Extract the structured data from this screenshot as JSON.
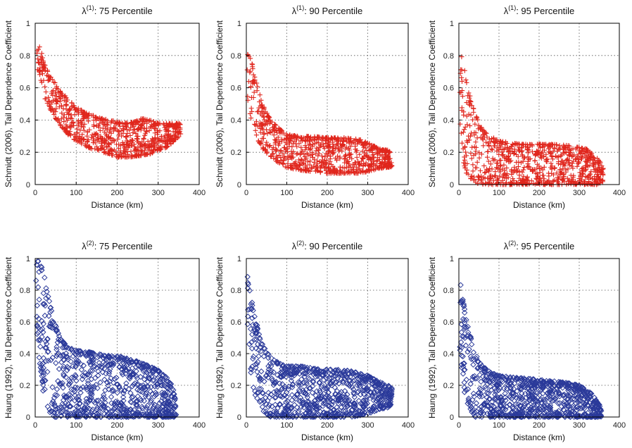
{
  "figure": {
    "row_ylabels": [
      "Schmidt (2006), Tail Dependence Coefficient",
      "Haung (1992), Tail Dependence Coefficient"
    ]
  },
  "chart_data": [
    {
      "type": "scatter",
      "title": "λ(1): 75 Percentile",
      "title_symbol": "λ",
      "title_superscript": "(1)",
      "title_rest": ": 75 Percentile",
      "xlabel": "Distance (km)",
      "ylabel": "Schmidt (2006), Tail Dependence Coefficient",
      "xlim": [
        0,
        400
      ],
      "ylim": [
        0,
        1
      ],
      "xticks": [
        0,
        100,
        200,
        300,
        400
      ],
      "yticks": [
        0,
        0.2,
        0.4,
        0.6,
        0.8,
        1
      ],
      "grid": true,
      "marker": "plus",
      "color": "#e0261d",
      "envelope": [
        [
          3,
          0.93,
          0.72
        ],
        [
          10,
          0.93,
          0.7
        ],
        [
          20,
          0.76,
          0.55
        ],
        [
          40,
          0.66,
          0.45
        ],
        [
          60,
          0.59,
          0.37
        ],
        [
          80,
          0.53,
          0.31
        ],
        [
          100,
          0.48,
          0.27
        ],
        [
          120,
          0.45,
          0.24
        ],
        [
          150,
          0.42,
          0.21
        ],
        [
          180,
          0.4,
          0.19
        ],
        [
          200,
          0.39,
          0.17
        ],
        [
          230,
          0.38,
          0.17
        ],
        [
          260,
          0.41,
          0.18
        ],
        [
          280,
          0.4,
          0.19
        ],
        [
          300,
          0.38,
          0.21
        ],
        [
          320,
          0.38,
          0.23
        ],
        [
          340,
          0.38,
          0.27
        ],
        [
          355,
          0.38,
          0.31
        ]
      ]
    },
    {
      "type": "scatter",
      "title": "λ(1): 90 Percentile",
      "title_symbol": "λ",
      "title_superscript": "(1)",
      "title_rest": ": 90 Percentile",
      "xlabel": "Distance (km)",
      "ylabel": "Schmidt (2006), Tail Dependence Coefficient",
      "xlim": [
        0,
        400
      ],
      "ylim": [
        0,
        1
      ],
      "xticks": [
        0,
        100,
        200,
        300,
        400
      ],
      "yticks": [
        0,
        0.2,
        0.4,
        0.6,
        0.8,
        1
      ],
      "grid": true,
      "marker": "plus",
      "color": "#e0261d",
      "envelope": [
        [
          2,
          0.92,
          0.55
        ],
        [
          10,
          0.82,
          0.42
        ],
        [
          20,
          0.68,
          0.32
        ],
        [
          40,
          0.5,
          0.22
        ],
        [
          60,
          0.4,
          0.17
        ],
        [
          80,
          0.35,
          0.13
        ],
        [
          100,
          0.31,
          0.1
        ],
        [
          130,
          0.3,
          0.09
        ],
        [
          160,
          0.3,
          0.08
        ],
        [
          200,
          0.29,
          0.07
        ],
        [
          240,
          0.29,
          0.07
        ],
        [
          280,
          0.28,
          0.07
        ],
        [
          300,
          0.26,
          0.08
        ],
        [
          330,
          0.22,
          0.1
        ],
        [
          360,
          0.21,
          0.11
        ]
      ]
    },
    {
      "type": "scatter",
      "title": "λ(1): 95 Percentile",
      "title_symbol": "λ",
      "title_superscript": "(1)",
      "title_rest": ": 95 Percentile",
      "xlabel": "Distance (km)",
      "ylabel": "Schmidt (2006), Tail Dependence Coefficient",
      "xlim": [
        0,
        400
      ],
      "ylim": [
        0,
        1
      ],
      "xticks": [
        0,
        100,
        200,
        300,
        400
      ],
      "yticks": [
        0,
        0.2,
        0.4,
        0.6,
        0.8,
        1
      ],
      "grid": true,
      "marker": "plus",
      "color": "#e0261d",
      "envelope": [
        [
          2,
          0.87,
          0.3
        ],
        [
          10,
          0.78,
          0.15
        ],
        [
          20,
          0.62,
          0.06
        ],
        [
          40,
          0.44,
          0.01
        ],
        [
          60,
          0.34,
          0.0
        ],
        [
          80,
          0.3,
          0.0
        ],
        [
          100,
          0.27,
          0.0
        ],
        [
          130,
          0.26,
          0.0
        ],
        [
          160,
          0.25,
          0.0
        ],
        [
          200,
          0.25,
          0.0
        ],
        [
          240,
          0.25,
          0.0
        ],
        [
          280,
          0.24,
          0.0
        ],
        [
          320,
          0.22,
          0.0
        ],
        [
          350,
          0.15,
          0.0
        ],
        [
          360,
          0.1,
          0.02
        ]
      ]
    },
    {
      "type": "scatter",
      "title": "λ(2): 75 Percentile",
      "title_symbol": "λ",
      "title_superscript": "(2)",
      "title_rest": ": 75 Percentile",
      "xlabel": "Distance (km)",
      "ylabel": "Haung (1992), Tail Dependence Coefficient",
      "xlim": [
        0,
        400
      ],
      "ylim": [
        0,
        1
      ],
      "xticks": [
        0,
        100,
        200,
        300,
        400
      ],
      "yticks": [
        0,
        0.2,
        0.4,
        0.6,
        0.8,
        1
      ],
      "grid": true,
      "marker": "diamond",
      "color": "#2b3a9a",
      "envelope": [
        [
          2,
          1.0,
          0.6
        ],
        [
          10,
          0.98,
          0.35
        ],
        [
          20,
          0.92,
          0.15
        ],
        [
          30,
          0.78,
          0.05
        ],
        [
          45,
          0.62,
          0.0
        ],
        [
          60,
          0.5,
          0.0
        ],
        [
          80,
          0.44,
          0.0
        ],
        [
          100,
          0.42,
          0.0
        ],
        [
          130,
          0.41,
          0.0
        ],
        [
          170,
          0.39,
          0.0
        ],
        [
          210,
          0.38,
          0.0
        ],
        [
          250,
          0.35,
          0.0
        ],
        [
          280,
          0.32,
          0.0
        ],
        [
          310,
          0.28,
          0.0
        ],
        [
          330,
          0.22,
          0.0
        ],
        [
          340,
          0.15,
          0.0
        ],
        [
          345,
          0.1,
          0.02
        ]
      ]
    },
    {
      "type": "scatter",
      "title": "λ(2): 90 Percentile",
      "title_symbol": "λ",
      "title_superscript": "(2)",
      "title_rest": ": 90 Percentile",
      "xlabel": "Distance (km)",
      "ylabel": "Haung (1992), Tail Dependence Coefficient",
      "xlim": [
        0,
        400
      ],
      "ylim": [
        0,
        1
      ],
      "xticks": [
        0,
        100,
        200,
        300,
        400
      ],
      "yticks": [
        0,
        0.2,
        0.4,
        0.6,
        0.8,
        1
      ],
      "grid": true,
      "marker": "diamond",
      "color": "#2b3a9a",
      "envelope": [
        [
          2,
          0.9,
          0.55
        ],
        [
          10,
          0.78,
          0.3
        ],
        [
          20,
          0.64,
          0.15
        ],
        [
          40,
          0.46,
          0.04
        ],
        [
          60,
          0.38,
          0.0
        ],
        [
          80,
          0.34,
          0.0
        ],
        [
          100,
          0.32,
          0.0
        ],
        [
          140,
          0.32,
          0.0
        ],
        [
          180,
          0.3,
          0.0
        ],
        [
          220,
          0.3,
          0.0
        ],
        [
          260,
          0.29,
          0.0
        ],
        [
          300,
          0.26,
          0.02
        ],
        [
          330,
          0.22,
          0.05
        ],
        [
          350,
          0.2,
          0.06
        ],
        [
          360,
          0.18,
          0.08
        ]
      ]
    },
    {
      "type": "scatter",
      "title": "λ(2): 95 Percentile",
      "title_symbol": "λ",
      "title_superscript": "(2)",
      "title_rest": ": 95 Percentile",
      "xlabel": "Distance (km)",
      "ylabel": "Haung (1992), Tail Dependence Coefficient",
      "xlim": [
        0,
        400
      ],
      "ylim": [
        0,
        1
      ],
      "xticks": [
        0,
        100,
        200,
        300,
        400
      ],
      "yticks": [
        0,
        0.2,
        0.4,
        0.6,
        0.8,
        1
      ],
      "grid": true,
      "marker": "diamond",
      "color": "#2b3a9a",
      "envelope": [
        [
          2,
          0.87,
          0.45
        ],
        [
          10,
          0.75,
          0.2
        ],
        [
          20,
          0.6,
          0.08
        ],
        [
          40,
          0.4,
          0.0
        ],
        [
          60,
          0.32,
          0.0
        ],
        [
          80,
          0.28,
          0.0
        ],
        [
          100,
          0.26,
          0.0
        ],
        [
          140,
          0.25,
          0.0
        ],
        [
          180,
          0.24,
          0.0
        ],
        [
          220,
          0.23,
          0.0
        ],
        [
          260,
          0.22,
          0.0
        ],
        [
          300,
          0.2,
          0.0
        ],
        [
          330,
          0.15,
          0.0
        ],
        [
          350,
          0.08,
          0.0
        ],
        [
          355,
          0.04,
          0.0
        ]
      ]
    }
  ]
}
